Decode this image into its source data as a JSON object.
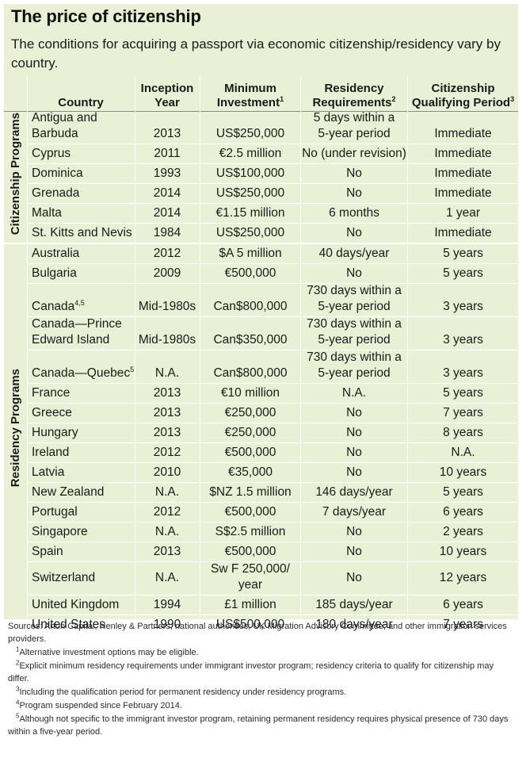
{
  "title": "The price of citizenship",
  "subtitle": "The conditions for acquiring a passport via economic citizenship/residency vary by country.",
  "headers": {
    "country": "Country",
    "inception_l1": "Inception",
    "inception_l2": "Year",
    "investment_l1": "Minimum",
    "investment_l2": "Investment",
    "investment_sup": "1",
    "residency_l1": "Residency",
    "residency_l2": "Requirements",
    "residency_sup": "2",
    "period_l1": "Citizenship",
    "period_l2": "Qualifying Period",
    "period_sup": "3"
  },
  "groups": {
    "citizenship": "Citizenship Programs",
    "residency": "Residency Programs"
  },
  "citizenship_rows": [
    {
      "country_l1": "Antigua and",
      "country_l2": "Barbuda",
      "sup": "",
      "year": "2013",
      "investment": "US$250,000",
      "res_l1": "5 days within a",
      "res_l2": "5-year period",
      "period": "Immediate"
    },
    {
      "country_l1": "Cyprus",
      "country_l2": "",
      "sup": "",
      "year": "2011",
      "investment": "€2.5 million",
      "res_l1": "No (under revision)",
      "res_l2": "",
      "period": "Immediate"
    },
    {
      "country_l1": "Dominica",
      "country_l2": "",
      "sup": "",
      "year": "1993",
      "investment": "US$100,000",
      "res_l1": "No",
      "res_l2": "",
      "period": "Immediate"
    },
    {
      "country_l1": "Grenada",
      "country_l2": "",
      "sup": "",
      "year": "2014",
      "investment": "US$250,000",
      "res_l1": "No",
      "res_l2": "",
      "period": "Immediate"
    },
    {
      "country_l1": "Malta",
      "country_l2": "",
      "sup": "",
      "year": "2014",
      "investment": "€1.15 million",
      "res_l1": "6 months",
      "res_l2": "",
      "period": "1 year"
    },
    {
      "country_l1": "St. Kitts and Nevis",
      "country_l2": "",
      "sup": "",
      "year": "1984",
      "investment": "US$250,000",
      "res_l1": "No",
      "res_l2": "",
      "period": "Immediate"
    }
  ],
  "residency_rows": [
    {
      "country_l1": "Australia",
      "country_l2": "",
      "sup": "",
      "year": "2012",
      "investment": "$A 5 million",
      "res_l1": "40 days/year",
      "res_l2": "",
      "period": "5 years"
    },
    {
      "country_l1": "Bulgaria",
      "country_l2": "",
      "sup": "",
      "year": "2009",
      "investment": "€500,000",
      "res_l1": "No",
      "res_l2": "",
      "period": "5 years"
    },
    {
      "country_l1": "Canada",
      "country_l2": "",
      "sup": "4,5",
      "year": "Mid-1980s",
      "investment": "Can$800,000",
      "res_l1": "730 days within a",
      "res_l2": "5-year period",
      "period": "3 years"
    },
    {
      "country_l1": "Canada—Prince",
      "country_l2": "Edward Island",
      "sup": "",
      "year": "Mid-1980s",
      "investment": "Can$350,000",
      "res_l1": "730 days within a",
      "res_l2": "5-year period",
      "period": "3 years"
    },
    {
      "country_l1": "Canada—Quebec",
      "country_l2": "",
      "sup": "5",
      "year": "N.A.",
      "investment": "Can$800,000",
      "res_l1": "730 days within a",
      "res_l2": "5-year period",
      "period": "3 years"
    },
    {
      "country_l1": "France",
      "country_l2": "",
      "sup": "",
      "year": "2013",
      "investment": "€10 million",
      "res_l1": "N.A.",
      "res_l2": "",
      "period": "5 years"
    },
    {
      "country_l1": "Greece",
      "country_l2": "",
      "sup": "",
      "year": "2013",
      "investment": "€250,000",
      "res_l1": "No",
      "res_l2": "",
      "period": "7 years"
    },
    {
      "country_l1": "Hungary",
      "country_l2": "",
      "sup": "",
      "year": "2013",
      "investment": "€250,000",
      "res_l1": "No",
      "res_l2": "",
      "period": "8 years"
    },
    {
      "country_l1": "Ireland",
      "country_l2": "",
      "sup": "",
      "year": "2012",
      "investment": "€500,000",
      "res_l1": "No",
      "res_l2": "",
      "period": "N.A."
    },
    {
      "country_l1": "Latvia",
      "country_l2": "",
      "sup": "",
      "year": "2010",
      "investment": "€35,000",
      "res_l1": "No",
      "res_l2": "",
      "period": "10 years"
    },
    {
      "country_l1": "New Zealand",
      "country_l2": "",
      "sup": "",
      "year": "N.A.",
      "investment": "$NZ 1.5 million",
      "res_l1": "146 days/year",
      "res_l2": "",
      "period": "5 years"
    },
    {
      "country_l1": "Portugal",
      "country_l2": "",
      "sup": "",
      "year": "2012",
      "investment": "€500,000",
      "res_l1": "7 days/year",
      "res_l2": "",
      "period": "6 years"
    },
    {
      "country_l1": "Singapore",
      "country_l2": "",
      "sup": "",
      "year": "N.A.",
      "investment": "S$2.5 million",
      "res_l1": "No",
      "res_l2": "",
      "period": "2 years"
    },
    {
      "country_l1": "Spain",
      "country_l2": "",
      "sup": "",
      "year": "2013",
      "investment": "€500,000",
      "res_l1": "No",
      "res_l2": "",
      "period": "10 years"
    },
    {
      "country_l1": "Switzerland",
      "country_l2": "",
      "sup": "",
      "year": "N.A.",
      "investment": "Sw F 250,000/",
      "investment_l2": "year",
      "res_l1": "No",
      "res_l2": "",
      "period": "12 years"
    },
    {
      "country_l1": "United Kingdom",
      "country_l2": "",
      "sup": "",
      "year": "1994",
      "investment": "£1 million",
      "res_l1": "185 days/year",
      "res_l2": "",
      "period": "6 years"
    },
    {
      "country_l1": "United States",
      "country_l2": "",
      "sup": "",
      "year": "1990",
      "investment": "US$500,000",
      "res_l1": "180 days/year",
      "res_l2": "",
      "period": "7 years"
    }
  ],
  "sources": "Sources: Arton Capital; Henley & Partners; national authorities; UK Migration Advisory Committee; and other immigration services providers.",
  "footnotes": [
    {
      "num": "1",
      "text": "Alternative investment options may be eligible."
    },
    {
      "num": "2",
      "text": "Explicit minimum residency requirements under immigrant investor program; residency criteria to qualify for citizenship may differ."
    },
    {
      "num": "3",
      "text": "Including the qualification period for permanent residency under residency programs."
    },
    {
      "num": "4",
      "text": "Program suspended since February 2014."
    },
    {
      "num": "5",
      "text": "Although not specific to the immigrant investor program, retaining permanent residency requires physical presence of 730 days within a five-year period."
    }
  ],
  "colors": {
    "panel": "#e9f0d6",
    "separator": "#ffffff"
  }
}
